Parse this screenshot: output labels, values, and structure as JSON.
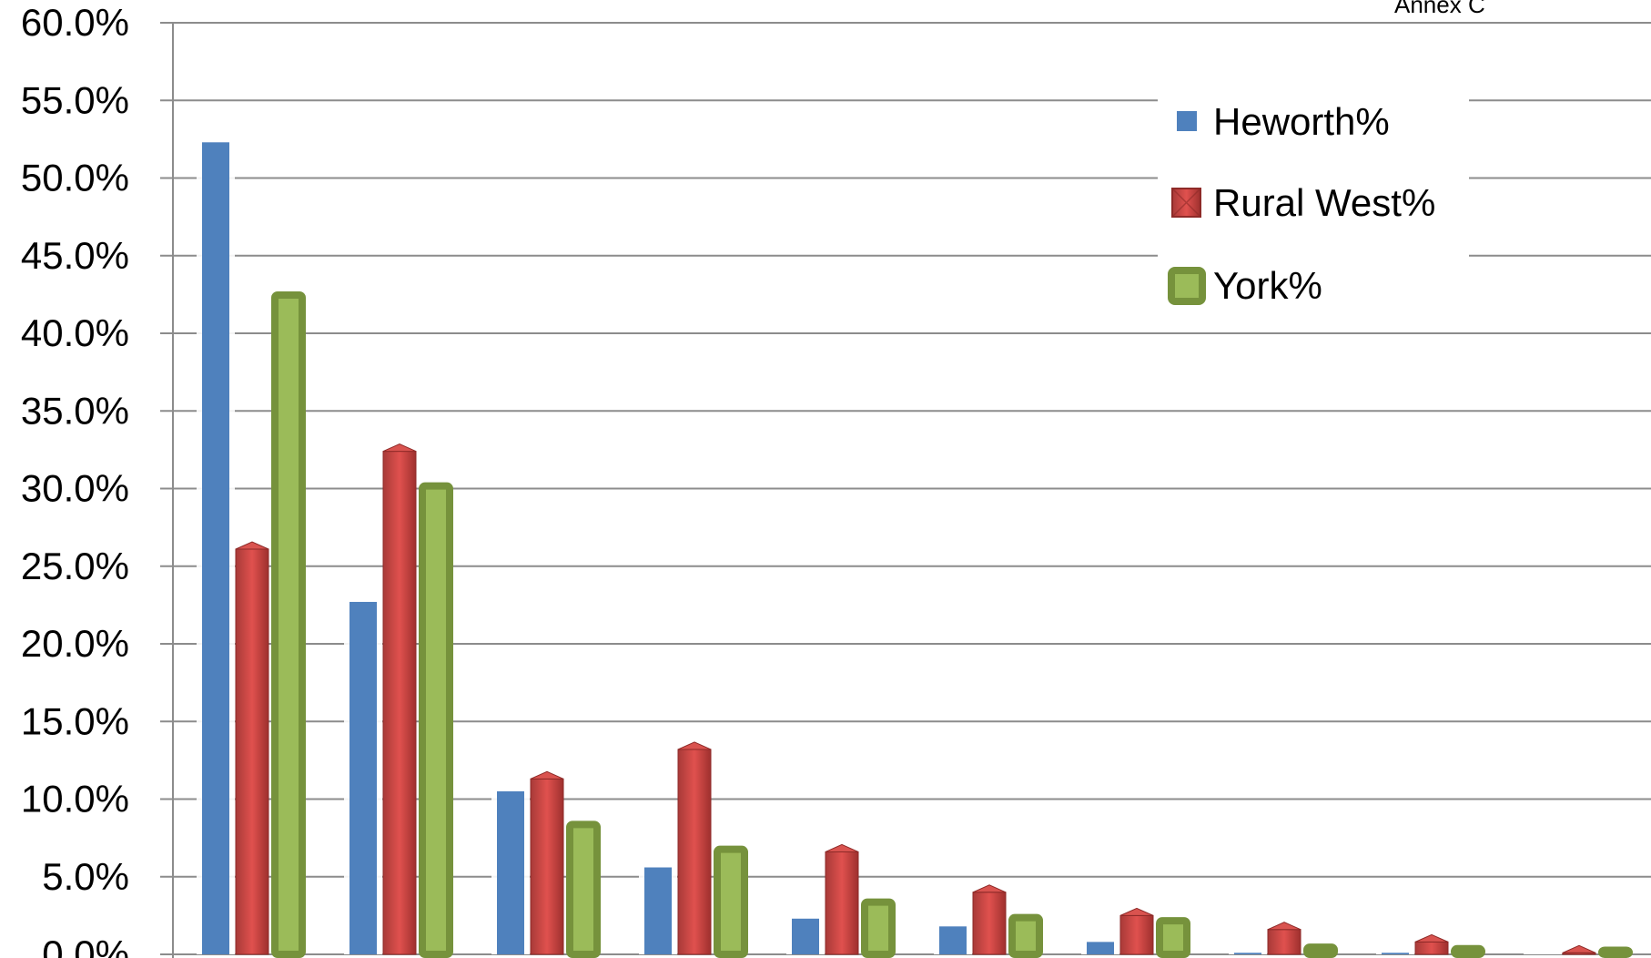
{
  "annex_label": "Annex C",
  "chart_data": {
    "type": "bar",
    "title": "",
    "xlabel": "",
    "ylabel": "",
    "ylim": [
      0,
      60
    ],
    "ytick_step": 5,
    "ytick_format": "percent_1dp",
    "grid": true,
    "legend_position": "top-right",
    "categories": [
      "",
      "",
      "",
      "",
      "",
      "",
      "",
      "",
      "",
      "",
      ""
    ],
    "series": [
      {
        "name": "Heworth%",
        "color": "#4F81BD",
        "values": [
          52.3,
          22.7,
          10.5,
          5.6,
          2.3,
          1.8,
          0.8,
          0.1,
          0.1,
          0.0,
          0.0
        ]
      },
      {
        "name": "Rural West%",
        "color": "#C0504D",
        "values": [
          26.1,
          32.4,
          11.3,
          13.2,
          6.6,
          4.0,
          2.5,
          1.6,
          0.8,
          0.1,
          0.0
        ]
      },
      {
        "name": "York%",
        "color": "#9BBB59",
        "values": [
          42.7,
          30.4,
          8.6,
          7.0,
          3.6,
          2.6,
          2.4,
          0.7,
          0.6,
          0.5,
          0.0
        ]
      }
    ]
  }
}
